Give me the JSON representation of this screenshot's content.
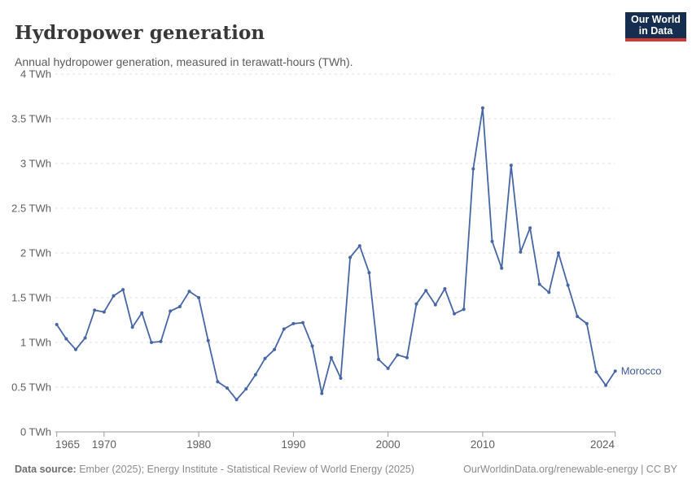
{
  "header": {
    "title": "Hydropower generation",
    "subtitle": "Annual hydropower generation, measured in terawatt-hours (TWh).",
    "logo": {
      "line1": "Our World",
      "line2": "in Data"
    }
  },
  "chart_data": {
    "type": "line",
    "title": "Hydropower generation",
    "subtitle": "Annual hydropower generation, measured in terawatt-hours (TWh).",
    "unit": "TWh",
    "xlim": [
      1965,
      2024
    ],
    "ylim": [
      0,
      4
    ],
    "grid": "horizontal-dashed",
    "legend_position": "end-of-line-label",
    "y_ticks": [
      0,
      0.5,
      1,
      1.5,
      2,
      2.5,
      3,
      3.5,
      4
    ],
    "y_tick_labels": [
      "0 TWh",
      "0.5 TWh",
      "1 TWh",
      "1.5 TWh",
      "2 TWh",
      "2.5 TWh",
      "3 TWh",
      "3.5 TWh",
      "4 TWh"
    ],
    "x_ticks": [
      1965,
      1970,
      1980,
      1990,
      2000,
      2010,
      2024
    ],
    "x_tick_labels": [
      "1965",
      "1970",
      "1980",
      "1990",
      "2000",
      "2010",
      "2024"
    ],
    "series": [
      {
        "name": "Morocco",
        "color": "#4666a5",
        "label_color": "#3d5a96",
        "x": [
          1965,
          1966,
          1967,
          1968,
          1969,
          1970,
          1971,
          1972,
          1973,
          1974,
          1975,
          1976,
          1977,
          1978,
          1979,
          1980,
          1981,
          1982,
          1983,
          1984,
          1985,
          1986,
          1987,
          1988,
          1989,
          1990,
          1991,
          1992,
          1993,
          1994,
          1995,
          1996,
          1997,
          1998,
          1999,
          2000,
          2001,
          2002,
          2003,
          2004,
          2005,
          2006,
          2007,
          2008,
          2009,
          2010,
          2011,
          2012,
          2013,
          2014,
          2015,
          2016,
          2017,
          2018,
          2019,
          2020,
          2021,
          2022,
          2023,
          2024
        ],
        "values": [
          1.2,
          1.04,
          0.92,
          1.05,
          1.36,
          1.34,
          1.52,
          1.59,
          1.17,
          1.33,
          1.0,
          1.01,
          1.35,
          1.4,
          1.57,
          1.5,
          1.02,
          0.56,
          0.49,
          0.36,
          0.48,
          0.64,
          0.82,
          0.92,
          1.15,
          1.21,
          1.22,
          0.96,
          0.43,
          0.83,
          0.6,
          1.95,
          2.08,
          1.78,
          0.81,
          0.71,
          0.86,
          0.83,
          1.43,
          1.58,
          1.42,
          1.6,
          1.32,
          1.37,
          2.94,
          3.62,
          2.13,
          1.83,
          2.98,
          2.01,
          2.28,
          1.65,
          1.56,
          2.0,
          1.64,
          1.29,
          1.21,
          0.67,
          0.52,
          0.68
        ]
      }
    ]
  },
  "footer": {
    "datasource_label": "Data source:",
    "datasource_text": " Ember (2025); Energy Institute - Statistical Review of World Energy (2025)",
    "link_text": "OurWorldinData.org/renewable-energy | CC BY"
  },
  "colors": {
    "background": "#ffffff",
    "title": "#383838",
    "subtitle": "#5b5b5b",
    "axis_text": "#5f5f5f",
    "gridline": "#dedede",
    "axis_line": "#999999",
    "series_line": "#4666a5",
    "logo_bg": "#152d4f",
    "logo_accent": "#d13832"
  }
}
